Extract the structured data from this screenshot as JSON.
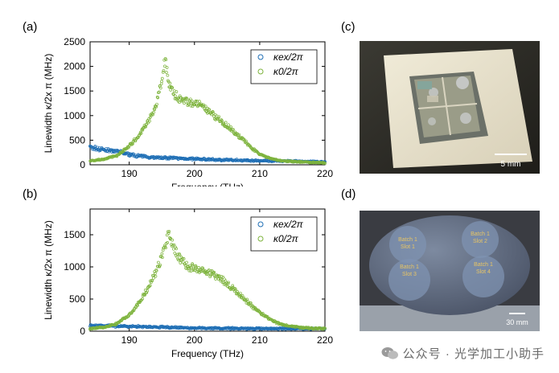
{
  "figure": {
    "panels": {
      "a": "(a)",
      "b": "(b)",
      "c": "(c)",
      "d": "(d)"
    },
    "photo_c": {
      "scale_bar": "5 mm"
    },
    "photo_d": {
      "scale_bar": "30 mm",
      "slots": [
        {
          "line1": "Batch 1",
          "line2": "Slot 1"
        },
        {
          "line1": "Batch 1",
          "line2": "Slot 2"
        },
        {
          "line1": "Batch 1",
          "line2": "Slot 3"
        },
        {
          "line1": "Batch 1",
          "line2": "Slot 4"
        }
      ]
    },
    "watermark": "公众号 · 光学加工小助手"
  },
  "chart_data": [
    {
      "type": "scatter",
      "panel": "(a)",
      "xlabel": "Frequency (THz)",
      "ylabel": "Linewidth κ/2x π (MHz)",
      "xlim": [
        184,
        220
      ],
      "ylim": [
        0,
        2500
      ],
      "xticks": [
        190,
        200,
        210,
        220
      ],
      "yticks": [
        0,
        500,
        1000,
        1500,
        2000,
        2500
      ],
      "legend_position": "top-right",
      "colors": {
        "kappa_ex": "#1f6fb5",
        "kappa_0": "#7db33c"
      },
      "series": [
        {
          "name": "κex/2π",
          "key": "kappa_ex",
          "marker": "open-circle",
          "x": [
            184,
            186,
            188,
            190,
            192,
            194,
            196,
            198,
            200,
            202,
            204,
            206,
            208,
            210,
            212,
            214,
            216,
            218,
            220
          ],
          "y": [
            350,
            310,
            270,
            210,
            170,
            150,
            140,
            130,
            120,
            110,
            100,
            95,
            90,
            85,
            80,
            75,
            70,
            65,
            60
          ]
        },
        {
          "name": "κ0/2π",
          "key": "kappa_0",
          "marker": "open-circle",
          "x": [
            184,
            186,
            188,
            190,
            191,
            192,
            193,
            194,
            195,
            195.5,
            196,
            197,
            198,
            199,
            200,
            201,
            202,
            203,
            204,
            205,
            206,
            207,
            208,
            209,
            210,
            211,
            212,
            213,
            214,
            216,
            218,
            220
          ],
          "y": [
            80,
            110,
            180,
            380,
            520,
            700,
            900,
            1150,
            1700,
            2150,
            1700,
            1420,
            1320,
            1280,
            1250,
            1200,
            1100,
            1000,
            900,
            800,
            680,
            560,
            440,
            320,
            220,
            160,
            120,
            90,
            70,
            60,
            50,
            40
          ]
        }
      ]
    },
    {
      "type": "scatter",
      "panel": "(b)",
      "xlabel": "Frequency (THz)",
      "ylabel": "Linewidth κ/2x π (MHz)",
      "xlim": [
        184,
        220
      ],
      "ylim": [
        0,
        1900
      ],
      "xticks": [
        190,
        200,
        210,
        220
      ],
      "yticks": [
        0,
        500,
        1000,
        1500
      ],
      "legend_position": "top-right",
      "colors": {
        "kappa_ex": "#1f6fb5",
        "kappa_0": "#7db33c"
      },
      "series": [
        {
          "name": "κex/2π",
          "key": "kappa_ex",
          "marker": "open-circle",
          "x": [
            184,
            186,
            188,
            190,
            192,
            194,
            196,
            198,
            200,
            202,
            204,
            206,
            208,
            210,
            212,
            214,
            216,
            218,
            220
          ],
          "y": [
            90,
            85,
            80,
            75,
            70,
            65,
            60,
            55,
            50,
            48,
            46,
            44,
            42,
            40,
            40,
            40,
            40,
            40,
            40
          ]
        },
        {
          "name": "κ0/2π",
          "key": "kappa_0",
          "marker": "open-circle",
          "x": [
            184,
            186,
            188,
            190,
            191,
            192,
            193,
            194,
            195,
            196,
            197,
            198,
            199,
            200,
            201,
            202,
            203,
            204,
            205,
            206,
            207,
            208,
            209,
            210,
            211,
            212,
            213,
            214,
            216,
            218,
            220
          ],
          "y": [
            40,
            60,
            110,
            250,
            380,
            520,
            700,
            900,
            1150,
            1500,
            1250,
            1100,
            1000,
            980,
            950,
            920,
            880,
            820,
            740,
            650,
            560,
            470,
            380,
            300,
            220,
            160,
            120,
            90,
            60,
            45,
            40
          ]
        }
      ]
    }
  ]
}
